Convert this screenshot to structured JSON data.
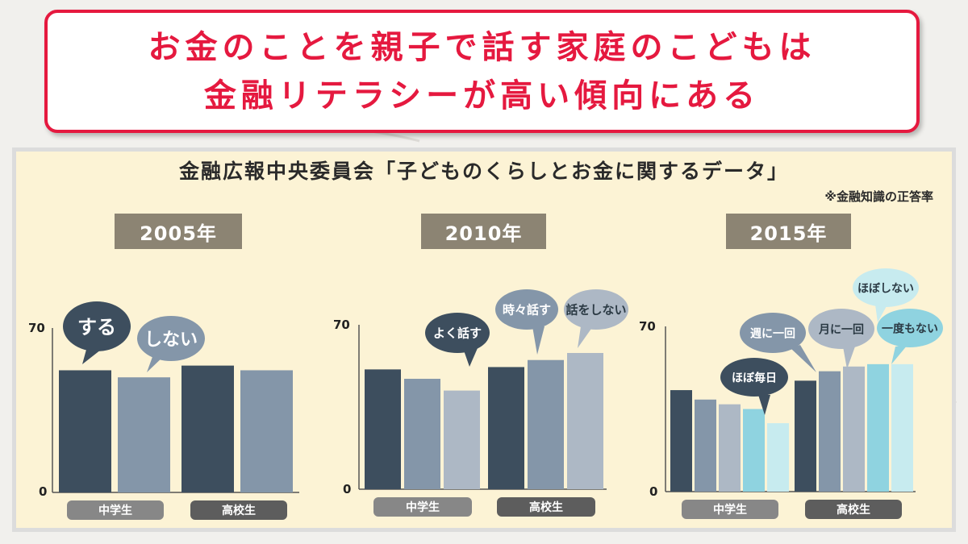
{
  "headline": {
    "line1": "お金のことを親子で話す家庭のこどもは",
    "line2": "金融リテラシーが高い傾向にある"
  },
  "source_title": "金融広報中央委員会「子どものくらしとお金に関するデータ」",
  "note": "※金融知識の正答率",
  "colors": {
    "headline": "#e5193f",
    "panel_bg": "#fcf3d5",
    "year_badge": "#8c8473"
  },
  "chart_data": [
    {
      "type": "bar",
      "title": "2005年",
      "ylim": [
        0,
        70
      ],
      "y_ticks": [
        "0",
        "70"
      ],
      "groups": [
        "中学生",
        "高校生"
      ],
      "series": [
        {
          "name": "する",
          "color": "#3d4e5e",
          "values": [
            52,
            54
          ]
        },
        {
          "name": "しない",
          "color": "#8496a9",
          "values": [
            49,
            52
          ]
        }
      ]
    },
    {
      "type": "bar",
      "title": "2010年",
      "ylim": [
        0,
        70
      ],
      "y_ticks": [
        "0",
        "70"
      ],
      "groups": [
        "中学生",
        "高校生"
      ],
      "series": [
        {
          "name": "よく話す",
          "color": "#3d4e5e",
          "values": [
            51,
            52
          ]
        },
        {
          "name": "時々話す",
          "color": "#8496a9",
          "values": [
            47,
            55
          ]
        },
        {
          "name": "話をしない",
          "color": "#adb8c5",
          "values": [
            42,
            58
          ]
        }
      ]
    },
    {
      "type": "bar",
      "title": "2015年",
      "ylim": [
        0,
        70
      ],
      "y_ticks": [
        "0",
        "70"
      ],
      "groups": [
        "中学生",
        "高校生"
      ],
      "series": [
        {
          "name": "ほぼ毎日",
          "color": "#3d4e5e",
          "values": [
            43,
            47
          ]
        },
        {
          "name": "週に一回",
          "color": "#8496a9",
          "values": [
            39,
            51
          ]
        },
        {
          "name": "月に一回",
          "color": "#adb8c5",
          "values": [
            37,
            53
          ]
        },
        {
          "name": "一度もない",
          "color": "#8fd3e0",
          "values": [
            35,
            54
          ]
        },
        {
          "name": "ほぼしない",
          "color": "#c7ebef",
          "values": [
            29,
            54
          ]
        }
      ]
    }
  ]
}
